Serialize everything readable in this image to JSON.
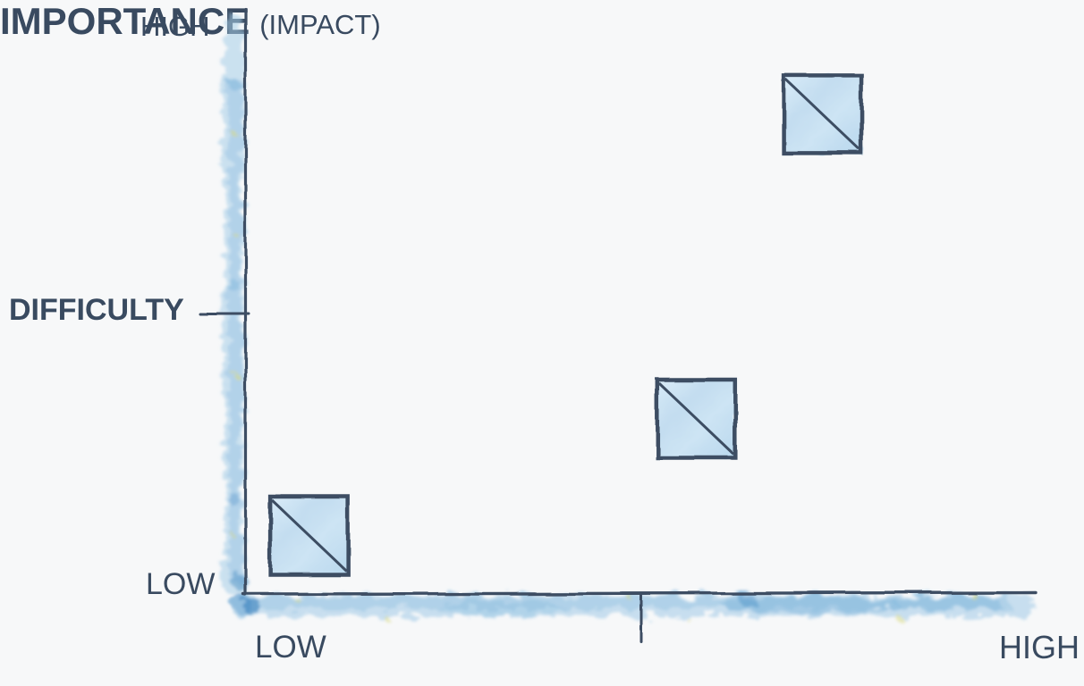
{
  "labels": {
    "y_high": "HIGH",
    "y_title": "DIFFICULTY",
    "y_low": "LOW",
    "x_low": "LOW",
    "x_title": "IMPORTANCE",
    "x_title_note": "(IMPACT)",
    "x_high": "HIGH"
  },
  "colors": {
    "background": "#f7f8f9",
    "text": "#394a60",
    "ink": "#3c4e63",
    "wash": "#a6cde8",
    "wash_mid": "#7fb5dc",
    "wash_deep": "#4189c2",
    "square_fill": "#c8e0f2",
    "square_fill_light": "#ddedf8",
    "speck_yellow": "#d8da7d"
  },
  "chart_data": {
    "type": "scatter",
    "title": "",
    "xlabel": "IMPORTANCE (IMPACT)",
    "ylabel": "DIFFICULTY",
    "xlim": [
      0,
      1
    ],
    "ylim": [
      0,
      1
    ],
    "x_tick_labels": [
      "LOW",
      "HIGH"
    ],
    "y_tick_labels": [
      "LOW",
      "HIGH"
    ],
    "grid": false,
    "legend": false,
    "style": "hand-drawn watercolor sketch",
    "marker": "light-blue watercolor square with diagonal slash (top-left to bottom-right)",
    "marker_size_px": 87,
    "points": [
      {
        "importance": 0.08,
        "difficulty": 0.1
      },
      {
        "importance": 0.57,
        "difficulty": 0.3
      },
      {
        "importance": 0.73,
        "difficulty": 0.82
      }
    ]
  }
}
